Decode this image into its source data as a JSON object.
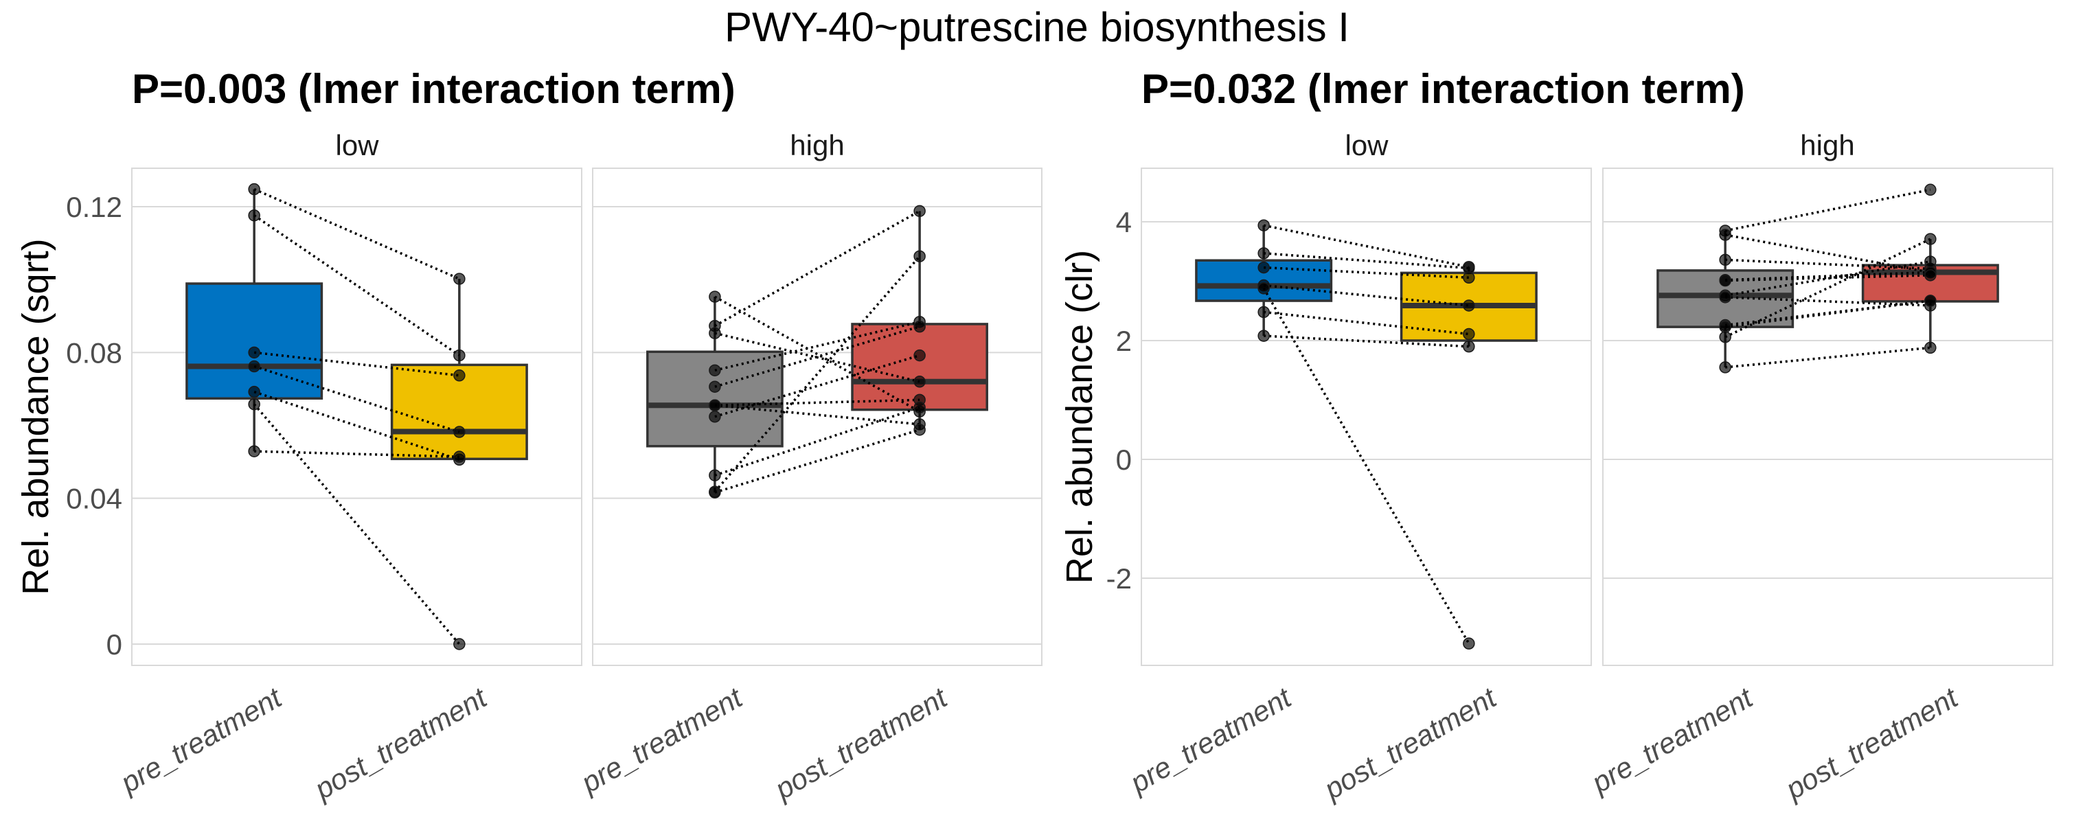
{
  "title": "PWY-40~putrescine biosynthesis I",
  "colors": {
    "low_pre": "#0073C2",
    "low_post": "#EFC000",
    "high_pre": "#868686",
    "high_post": "#CD534C"
  },
  "chart_data": [
    {
      "type": "box",
      "title": "P=0.003 (lmer interaction term)",
      "ylabel": "Rel. abundance (sqrt)",
      "xlabel": "",
      "ylim": [
        -0.006,
        0.131
      ],
      "yticks": [
        0,
        0.04,
        0.08,
        0.12
      ],
      "ytick_labels": [
        "0",
        "0.04",
        "0.08",
        "0.12"
      ],
      "grid": true,
      "categories": [
        "pre_treatment",
        "post_treatment"
      ],
      "facets": [
        {
          "label": "low",
          "groups": [
            {
              "name": "pre_treatment",
              "color_key": "low_pre",
              "q1": 0.0674,
              "median": 0.0762,
              "q3": 0.0989,
              "whisker_low": 0.0529,
              "whisker_high": 0.1248,
              "points": [
                0.1248,
                0.1176,
                0.08,
                0.0762,
                0.0692,
                0.0658,
                0.0529
              ]
            },
            {
              "name": "post_treatment",
              "color_key": "low_post",
              "q1": 0.0508,
              "median": 0.0583,
              "q3": 0.0766,
              "whisker_low": 0.0506,
              "whisker_high": 0.1002,
              "points": [
                0.1002,
                0.0792,
                0.0737,
                0.0582,
                0.0506,
                0.0,
                0.0514
              ]
            }
          ],
          "pairs": [
            [
              0.1248,
              0.1002
            ],
            [
              0.1176,
              0.0792
            ],
            [
              0.08,
              0.0737
            ],
            [
              0.0762,
              0.0582
            ],
            [
              0.0692,
              0.0506
            ],
            [
              0.0658,
              0.0
            ],
            [
              0.0529,
              0.0514
            ]
          ]
        },
        {
          "label": "high",
          "groups": [
            {
              "name": "pre_treatment",
              "color_key": "high_pre",
              "q1": 0.0543,
              "median": 0.0655,
              "q3": 0.0802,
              "whisker_low": 0.0416,
              "whisker_high": 0.0953,
              "points": [
                0.0953,
                0.0873,
                0.0853,
                0.0751,
                0.0706,
                0.0655,
                0.0655,
                0.0624,
                0.0463,
                0.0418,
                0.0416
              ]
            },
            {
              "name": "post_treatment",
              "color_key": "high_post",
              "q1": 0.0643,
              "median": 0.072,
              "q3": 0.0878,
              "whisker_low": 0.0588,
              "whisker_high": 0.1188,
              "points": [
                0.0638,
                0.1188,
                0.072,
                0.0884,
                0.0871,
                0.067,
                0.0603,
                0.0792,
                0.0649,
                0.1064,
                0.0588
              ]
            }
          ],
          "pairs": [
            [
              0.0953,
              0.0638
            ],
            [
              0.0873,
              0.1188
            ],
            [
              0.0853,
              0.072
            ],
            [
              0.0751,
              0.0884
            ],
            [
              0.0706,
              0.0871
            ],
            [
              0.0655,
              0.067
            ],
            [
              0.0655,
              0.0603
            ],
            [
              0.0624,
              0.0792
            ],
            [
              0.0463,
              0.0649
            ],
            [
              0.0418,
              0.1064
            ],
            [
              0.0416,
              0.0588
            ]
          ]
        }
      ]
    },
    {
      "type": "box",
      "title": "P=0.032 (lmer interaction term)",
      "ylabel": "Rel. abundance (clr)",
      "xlabel": "",
      "ylim": [
        -3.5,
        4.95
      ],
      "yticks": [
        -2,
        0,
        2,
        4
      ],
      "ytick_labels": [
        "-2",
        "0",
        "2",
        "4"
      ],
      "grid": true,
      "categories": [
        "pre_treatment",
        "post_treatment"
      ],
      "facets": [
        {
          "label": "low",
          "groups": [
            {
              "name": "pre_treatment",
              "color_key": "low_pre",
              "q1": 2.67,
              "median": 2.92,
              "q3": 3.35,
              "whisker_low": 2.08,
              "whisker_high": 3.94,
              "points": [
                3.94,
                3.47,
                3.23,
                2.93,
                2.88,
                2.48,
                2.08
              ]
            },
            {
              "name": "post_treatment",
              "color_key": "low_post",
              "q1": 2.0,
              "median": 2.59,
              "q3": 3.14,
              "whisker_low": 1.9,
              "whisker_high": 3.24,
              "points": [
                3.24,
                3.22,
                3.06,
                2.59,
                -3.1,
                2.11,
                1.9
              ]
            }
          ],
          "pairs": [
            [
              3.94,
              3.24
            ],
            [
              3.47,
              3.22
            ],
            [
              3.23,
              3.06
            ],
            [
              2.93,
              2.59
            ],
            [
              2.88,
              -3.1
            ],
            [
              2.48,
              2.11
            ],
            [
              2.08,
              1.9
            ]
          ]
        },
        {
          "label": "high",
          "groups": [
            {
              "name": "pre_treatment",
              "color_key": "high_pre",
              "q1": 2.23,
              "median": 2.76,
              "q3": 3.18,
              "whisker_low": 1.55,
              "whisker_high": 3.85,
              "points": [
                3.85,
                3.78,
                3.36,
                3.02,
                3.01,
                2.76,
                2.73,
                2.26,
                2.23,
                2.06,
                1.55
              ]
            },
            {
              "name": "post_treatment",
              "color_key": "high_post",
              "q1": 2.66,
              "median": 3.15,
              "q3": 3.27,
              "whisker_low": 1.88,
              "whisker_high": 3.71,
              "points": [
                4.54,
                3.15,
                3.21,
                3.15,
                3.1,
                3.33,
                2.59,
                2.67,
                2.67,
                3.71,
                1.88
              ]
            }
          ],
          "pairs": [
            [
              3.85,
              4.54
            ],
            [
              3.78,
              3.15
            ],
            [
              3.36,
              3.21
            ],
            [
              3.02,
              3.15
            ],
            [
              3.01,
              3.1
            ],
            [
              2.76,
              3.33
            ],
            [
              2.73,
              2.59
            ],
            [
              2.26,
              2.67
            ],
            [
              2.23,
              2.67
            ],
            [
              2.06,
              3.71
            ],
            [
              1.55,
              1.88
            ]
          ]
        }
      ]
    }
  ]
}
